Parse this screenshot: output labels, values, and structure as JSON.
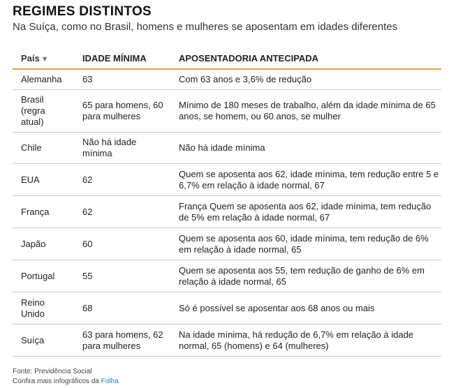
{
  "headline": "REGIMES DISTINTOS",
  "subtitle": "Na Suíça, como no Brasil, homens e mulheres se aposentam em idades diferentes",
  "table": {
    "headers": {
      "pais": "País",
      "sort_arrow": "▼",
      "idade": "IDADE MÍNIMA",
      "aposentadoria": "APOSENTADORIA ANTECIPADA"
    },
    "rows": [
      {
        "pais": "Alemanha",
        "idade": "63",
        "aposentadoria": "Com 63 anos e 3,6% de redução"
      },
      {
        "pais": "Brasil (regra atual)",
        "idade": "65 para homens, 60 para mulheres",
        "aposentadoria": "Mínimo de 180 meses de trabalho, além da idade mínima de 65 anos, se homem, ou 60 anos, se mulher"
      },
      {
        "pais": "Chile",
        "idade": "Não há idade mínima",
        "aposentadoria": "Não há idade mínima"
      },
      {
        "pais": "EUA",
        "idade": "62",
        "aposentadoria": "Quem se aposenta aos 62, idade mínima, tem redução entre 5 e 6,7% em relação à idade normal, 67"
      },
      {
        "pais": "França",
        "idade": "62",
        "aposentadoria": "França Quem se aposenta aos 62, idade mínima, tem redução de 5% em relação à idade normal, 67"
      },
      {
        "pais": "Japão",
        "idade": "60",
        "aposentadoria": "Quem se aposenta aos 60, idade mínima, tem redução de 6% em relação à idade normal, 65"
      },
      {
        "pais": "Portugal",
        "idade": "55",
        "aposentadoria": "Quem se aposenta aos 55, tem redução de ganho de 6% em relação à idade normal, 65"
      },
      {
        "pais": "Reino Unido",
        "idade": "68",
        "aposentadoria": "Só é possível se aposentar aos 68 anos ou mais"
      },
      {
        "pais": "Suíça",
        "idade": "63 para homens, 62 para mulheres",
        "aposentadoria": "Na idade mínima, há redução de 6,7% em relação à idade normal, 65 (homens) e 64 (mulheres)"
      }
    ]
  },
  "footer": {
    "source": "Fonte: Previdência Social",
    "more_prefix": "Confira mais infográficos da ",
    "more_link": "Folha"
  },
  "colors": {
    "header_rule": "#e8a33a",
    "row_rule": "#c8c8c8",
    "link": "#1a7ec4"
  }
}
